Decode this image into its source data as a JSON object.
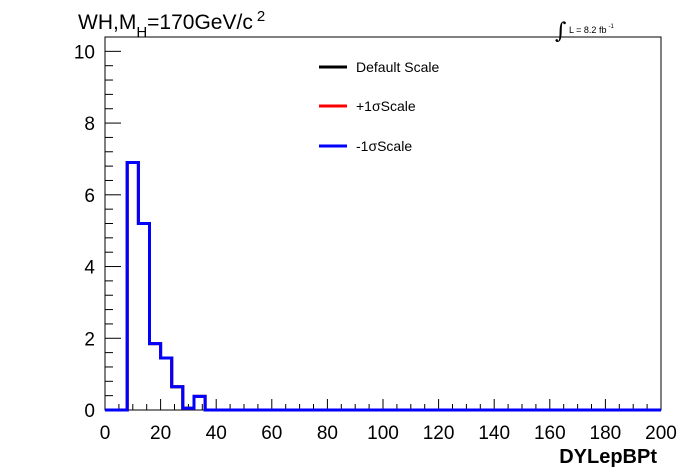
{
  "chart_data": {
    "type": "line",
    "title_main": "WH,M",
    "title_sub": "H",
    "title_rest": "=170GeV/c",
    "title_sup": "2",
    "lumi_prefix": "L = 8.2 fb",
    "lumi_sup": "-1",
    "xlabel": "DYLepBPt",
    "ylabel": "",
    "xlim": [
      0,
      200
    ],
    "ylim": [
      0,
      10.4
    ],
    "x_ticks": [
      0,
      20,
      40,
      60,
      80,
      100,
      120,
      140,
      160,
      180,
      200
    ],
    "y_ticks": [
      0,
      2,
      4,
      6,
      8,
      10
    ],
    "bin_edges": [
      0,
      4,
      8,
      12,
      16,
      20,
      24,
      28,
      32,
      36,
      40,
      200
    ],
    "legend_position": "top-center",
    "series": [
      {
        "name": "Default Scale",
        "color": "#000000",
        "values": [
          0,
          0,
          6.9,
          5.2,
          1.85,
          1.45,
          0.65,
          0.05,
          0.38,
          0,
          0
        ]
      },
      {
        "name": "+1σScale",
        "color": "#ff0000",
        "values": [
          0,
          0,
          6.9,
          5.2,
          1.85,
          1.45,
          0.65,
          0.05,
          0.38,
          0,
          0
        ]
      },
      {
        "name": "-1σScale",
        "color": "#0000ff",
        "values": [
          0,
          0,
          6.9,
          5.2,
          1.85,
          1.45,
          0.65,
          0.05,
          0.38,
          0,
          0
        ]
      }
    ]
  }
}
